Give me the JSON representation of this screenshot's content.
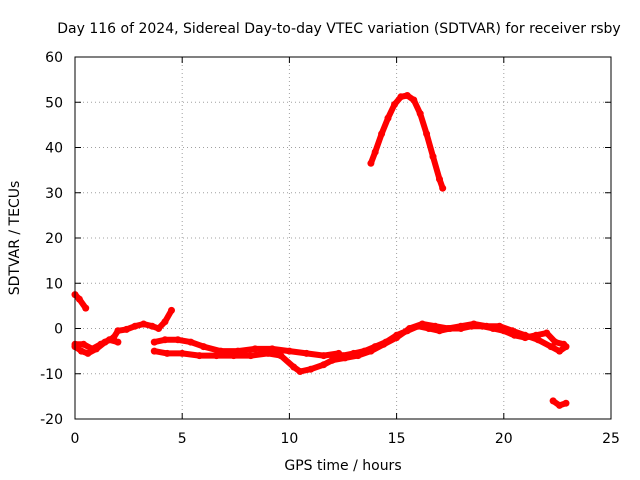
{
  "chart_data": {
    "type": "scatter",
    "title": "Day 116 of 2024, Sidereal Day-to-day VTEC variation (SDTVAR) for receiver rsby",
    "xlabel": "GPS time / hours",
    "ylabel": "SDTVAR / TECUs",
    "xlim": [
      0,
      25
    ],
    "ylim": [
      -20,
      60
    ],
    "xticks": [
      0,
      5,
      10,
      15,
      20,
      25
    ],
    "yticks": [
      -20,
      -10,
      0,
      10,
      20,
      30,
      40,
      50,
      60
    ],
    "grid": true,
    "series": [
      {
        "name": "SDTVAR",
        "color": "#ff0000",
        "tracks": [
          {
            "x": [
              0.0,
              0.2,
              0.5
            ],
            "y": [
              7.5,
              6.5,
              4.5
            ]
          },
          {
            "x": [
              0.0,
              0.3,
              0.6,
              1.0,
              1.4,
              1.8,
              2.0,
              2.4,
              2.8,
              3.2,
              3.6,
              3.9,
              4.2,
              4.5
            ],
            "y": [
              -4.0,
              -5.0,
              -5.5,
              -4.5,
              -3.0,
              -2.0,
              -0.5,
              -0.2,
              0.5,
              1.0,
              0.5,
              0.0,
              1.5,
              4.0
            ]
          },
          {
            "x": [
              0.0,
              0.4,
              0.8,
              1.2,
              1.6,
              2.0
            ],
            "y": [
              -3.5,
              -3.5,
              -4.5,
              -3.5,
              -2.5,
              -3.0
            ]
          },
          {
            "x": [
              3.7,
              4.2,
              4.8,
              5.4,
              6.0,
              6.8,
              7.6,
              8.4,
              9.2,
              10.0,
              10.8,
              11.6,
              12.3
            ],
            "y": [
              -3.0,
              -2.5,
              -2.5,
              -3.0,
              -4.0,
              -5.0,
              -5.0,
              -4.5,
              -4.5,
              -5.0,
              -5.5,
              -6.0,
              -5.5
            ]
          },
          {
            "x": [
              3.7,
              4.3,
              5.0,
              5.8,
              6.6,
              7.4,
              8.2,
              9.0,
              9.6,
              10.2,
              10.5,
              11.0,
              11.6,
              12.0
            ],
            "y": [
              -5.0,
              -5.5,
              -5.5,
              -6.0,
              -6.0,
              -6.0,
              -6.0,
              -5.5,
              -6.0,
              -8.5,
              -9.5,
              -9.0,
              -8.0,
              -7.0
            ]
          },
          {
            "x": [
              12.0,
              12.5,
              13.0,
              13.5,
              14.0,
              14.5,
              15.0,
              15.5,
              16.0,
              16.5,
              17.0,
              17.5,
              18.0,
              18.5,
              19.0,
              19.5,
              20.0,
              20.5,
              21.0,
              21.5,
              22.0,
              22.4,
              22.8
            ],
            "y": [
              -6.0,
              -6.0,
              -5.5,
              -5.0,
              -4.0,
              -3.0,
              -1.5,
              -0.5,
              0.5,
              0.0,
              -0.5,
              0.0,
              0.0,
              0.5,
              0.5,
              0.0,
              -0.5,
              -1.5,
              -2.0,
              -1.5,
              -1.0,
              -3.0,
              -3.5
            ]
          },
          {
            "x": [
              12.0,
              12.6,
              13.2,
              13.8,
              14.4,
              15.0,
              15.6,
              16.2,
              16.8,
              17.4,
              18.0,
              18.6,
              19.2,
              19.8,
              20.4,
              21.0,
              21.6,
              22.2,
              22.6,
              22.9
            ],
            "y": [
              -7.0,
              -6.5,
              -6.0,
              -5.0,
              -3.5,
              -2.0,
              0.0,
              1.0,
              0.5,
              0.0,
              0.5,
              1.0,
              0.5,
              0.5,
              -0.5,
              -1.5,
              -2.5,
              -4.0,
              -5.0,
              -4.0
            ]
          },
          {
            "x": [
              13.8,
              14.0,
              14.3,
              14.6,
              14.9,
              15.2,
              15.5,
              15.8,
              16.1,
              16.4,
              16.7,
              17.0,
              17.15
            ],
            "y": [
              36.5,
              39.0,
              43.0,
              46.5,
              49.5,
              51.2,
              51.5,
              50.5,
              47.5,
              43.0,
              38.0,
              33.0,
              31.0
            ]
          },
          {
            "x": [
              22.3,
              22.6,
              22.9
            ],
            "y": [
              -16.0,
              -17.0,
              -16.5
            ]
          }
        ]
      }
    ]
  }
}
